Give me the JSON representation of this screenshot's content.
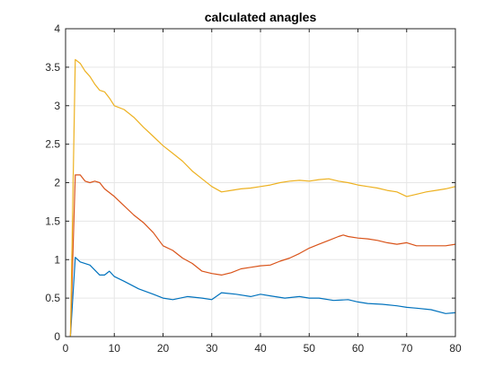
{
  "chart_data": {
    "type": "line",
    "title": "calculated anagles",
    "xlabel": "",
    "ylabel": "",
    "xlim": [
      0,
      80
    ],
    "ylim": [
      0,
      4
    ],
    "xticks": [
      0,
      10,
      20,
      30,
      40,
      50,
      60,
      70,
      80
    ],
    "yticks": [
      0,
      0.5,
      1,
      1.5,
      2,
      2.5,
      3,
      3.5,
      4
    ],
    "xtick_labels": [
      "0",
      "10",
      "20",
      "30",
      "40",
      "50",
      "60",
      "70",
      "80"
    ],
    "ytick_labels": [
      "0",
      "0.5",
      "1",
      "1.5",
      "2",
      "2.5",
      "3",
      "3.5",
      "4"
    ],
    "grid": true,
    "series": [
      {
        "color": "#0072BD",
        "x": [
          1,
          2,
          3,
          5,
          7,
          8,
          9,
          10,
          12,
          15,
          18,
          20,
          22,
          25,
          28,
          30,
          32,
          35,
          38,
          40,
          42,
          45,
          48,
          50,
          52,
          55,
          58,
          60,
          62,
          65,
          68,
          70,
          72,
          75,
          78,
          80
        ],
        "values": [
          0.0,
          1.03,
          0.97,
          0.93,
          0.8,
          0.8,
          0.85,
          0.78,
          0.72,
          0.62,
          0.55,
          0.5,
          0.48,
          0.52,
          0.5,
          0.48,
          0.57,
          0.55,
          0.52,
          0.55,
          0.53,
          0.5,
          0.52,
          0.5,
          0.5,
          0.47,
          0.48,
          0.45,
          0.43,
          0.42,
          0.4,
          0.38,
          0.37,
          0.35,
          0.3,
          0.31
        ]
      },
      {
        "color": "#D95319",
        "x": [
          1,
          2,
          3,
          4,
          5,
          6,
          7,
          8,
          10,
          12,
          14,
          16,
          18,
          20,
          22,
          24,
          26,
          28,
          30,
          32,
          34,
          36,
          38,
          40,
          42,
          44,
          46,
          48,
          50,
          52,
          54,
          56,
          57,
          58,
          60,
          62,
          64,
          66,
          68,
          70,
          72,
          74,
          76,
          78,
          80
        ],
        "values": [
          0.0,
          2.1,
          2.1,
          2.02,
          2.0,
          2.02,
          2.0,
          1.92,
          1.82,
          1.7,
          1.58,
          1.48,
          1.35,
          1.18,
          1.12,
          1.02,
          0.95,
          0.85,
          0.82,
          0.8,
          0.83,
          0.88,
          0.9,
          0.92,
          0.93,
          0.98,
          1.02,
          1.08,
          1.15,
          1.2,
          1.25,
          1.3,
          1.32,
          1.3,
          1.28,
          1.27,
          1.25,
          1.22,
          1.2,
          1.22,
          1.18,
          1.18,
          1.18,
          1.18,
          1.2
        ]
      },
      {
        "color": "#EDB120",
        "x": [
          1,
          2,
          3,
          4,
          5,
          6,
          7,
          8,
          9,
          10,
          12,
          14,
          16,
          18,
          20,
          22,
          24,
          26,
          28,
          30,
          32,
          34,
          36,
          38,
          40,
          42,
          44,
          46,
          48,
          50,
          52,
          54,
          56,
          58,
          60,
          62,
          64,
          66,
          68,
          70,
          72,
          74,
          76,
          78,
          80
        ],
        "values": [
          0.0,
          3.6,
          3.55,
          3.45,
          3.38,
          3.28,
          3.2,
          3.18,
          3.1,
          3.0,
          2.95,
          2.85,
          2.72,
          2.6,
          2.48,
          2.38,
          2.28,
          2.15,
          2.05,
          1.95,
          1.88,
          1.9,
          1.92,
          1.93,
          1.95,
          1.97,
          2.0,
          2.02,
          2.03,
          2.02,
          2.04,
          2.05,
          2.02,
          2.0,
          1.97,
          1.95,
          1.93,
          1.9,
          1.88,
          1.82,
          1.85,
          1.88,
          1.9,
          1.92,
          1.95
        ]
      }
    ]
  }
}
